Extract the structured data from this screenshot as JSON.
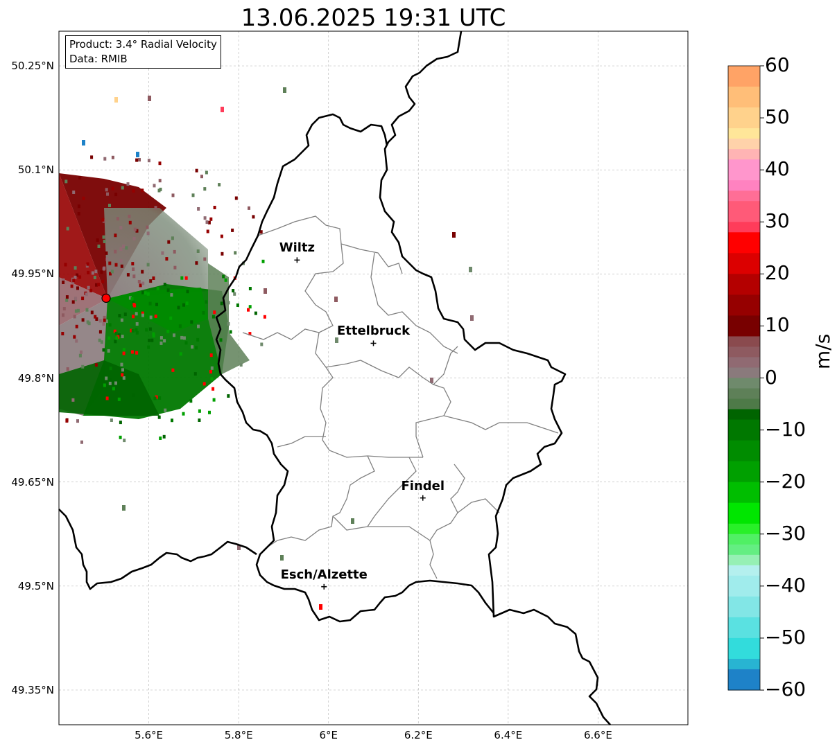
{
  "title": "13.06.2025 19:31 UTC",
  "info": {
    "product": "Product: 3.4° Radial Velocity",
    "data": "Data: RMIB"
  },
  "axes": {
    "lat_ticks": [
      "50.25°N",
      "50.1°N",
      "49.95°N",
      "49.8°N",
      "49.65°N",
      "49.5°N",
      "49.35°N"
    ],
    "lon_ticks": [
      "5.6°E",
      "5.8°E",
      "6°E",
      "6.2°E",
      "6.4°E",
      "6.6°E"
    ],
    "lat_values": [
      50.25,
      50.1,
      49.95,
      49.8,
      49.65,
      49.5,
      49.35
    ],
    "lon_values": [
      5.6,
      5.8,
      6.0,
      6.2,
      6.4,
      6.6
    ],
    "lon_range": [
      5.4,
      6.8
    ],
    "lat_range": [
      49.3,
      50.3
    ],
    "grid": true
  },
  "radar": {
    "lon": 5.505,
    "lat": 49.915,
    "color": "#ff0000"
  },
  "cities": [
    {
      "name": "Wiltz",
      "lon": 5.93,
      "lat": 49.97
    },
    {
      "name": "Ettelbruck",
      "lon": 6.1,
      "lat": 49.85
    },
    {
      "name": "Findel",
      "lon": 6.21,
      "lat": 49.627
    },
    {
      "name": "Esch/Alzette",
      "lon": 5.99,
      "lat": 49.499
    }
  ],
  "colorbar": {
    "label": "m/s",
    "range": [
      -60,
      60
    ],
    "ticks": [
      "60",
      "50",
      "40",
      "30",
      "20",
      "10",
      "0",
      "−10",
      "−20",
      "−30",
      "−40",
      "−50",
      "−60"
    ],
    "tick_values": [
      60,
      50,
      40,
      30,
      20,
      10,
      0,
      -10,
      -20,
      -30,
      -40,
      -50,
      -60
    ],
    "colors": [
      {
        "from": 56,
        "to": 60,
        "color": "#ffa366"
      },
      {
        "from": 52,
        "to": 56,
        "color": "#ffbe78"
      },
      {
        "from": 48,
        "to": 52,
        "color": "#ffd28c"
      },
      {
        "from": 46,
        "to": 48,
        "color": "#ffe699"
      },
      {
        "from": 44,
        "to": 46,
        "color": "#ffd2aa"
      },
      {
        "from": 42,
        "to": 44,
        "color": "#ffb4b4"
      },
      {
        "from": 38,
        "to": 42,
        "color": "#ff96cc"
      },
      {
        "from": 36,
        "to": 38,
        "color": "#ff82c0"
      },
      {
        "from": 34,
        "to": 36,
        "color": "#ff6e96"
      },
      {
        "from": 30,
        "to": 34,
        "color": "#ff5a78"
      },
      {
        "from": 28,
        "to": 30,
        "color": "#ff3c5a"
      },
      {
        "from": 24,
        "to": 28,
        "color": "#ff0000"
      },
      {
        "from": 20,
        "to": 24,
        "color": "#dc0000"
      },
      {
        "from": 16,
        "to": 20,
        "color": "#b40000"
      },
      {
        "from": 12,
        "to": 16,
        "color": "#960000"
      },
      {
        "from": 8,
        "to": 12,
        "color": "#780000"
      },
      {
        "from": 6,
        "to": 8,
        "color": "#8a4a4e"
      },
      {
        "from": 4,
        "to": 6,
        "color": "#8e5a60"
      },
      {
        "from": 2,
        "to": 4,
        "color": "#906a72"
      },
      {
        "from": 0,
        "to": 2,
        "color": "#8a7a7c"
      },
      {
        "from": -2,
        "to": 0,
        "color": "#6f8a6c"
      },
      {
        "from": -4,
        "to": -2,
        "color": "#5e8058"
      },
      {
        "from": -6,
        "to": -4,
        "color": "#4e7a48"
      },
      {
        "from": -8,
        "to": -6,
        "color": "#006400"
      },
      {
        "from": -12,
        "to": -8,
        "color": "#007800"
      },
      {
        "from": -16,
        "to": -12,
        "color": "#008c00"
      },
      {
        "from": -20,
        "to": -16,
        "color": "#00a000"
      },
      {
        "from": -24,
        "to": -20,
        "color": "#00be00"
      },
      {
        "from": -28,
        "to": -24,
        "color": "#00e600"
      },
      {
        "from": -30,
        "to": -28,
        "color": "#28f028"
      },
      {
        "from": -32,
        "to": -30,
        "color": "#50f064"
      },
      {
        "from": -34,
        "to": -32,
        "color": "#64ee82"
      },
      {
        "from": -36,
        "to": -34,
        "color": "#96f0b4"
      },
      {
        "from": -38,
        "to": -36,
        "color": "#b4f0ee"
      },
      {
        "from": -42,
        "to": -38,
        "color": "#a0ecec"
      },
      {
        "from": -46,
        "to": -42,
        "color": "#82e6e6"
      },
      {
        "from": -50,
        "to": -46,
        "color": "#5ae1e1"
      },
      {
        "from": -54,
        "to": -50,
        "color": "#32dcdc"
      },
      {
        "from": -56,
        "to": -54,
        "color": "#28b4d2"
      },
      {
        "from": -60,
        "to": -56,
        "color": "#1e82c8"
      }
    ]
  }
}
